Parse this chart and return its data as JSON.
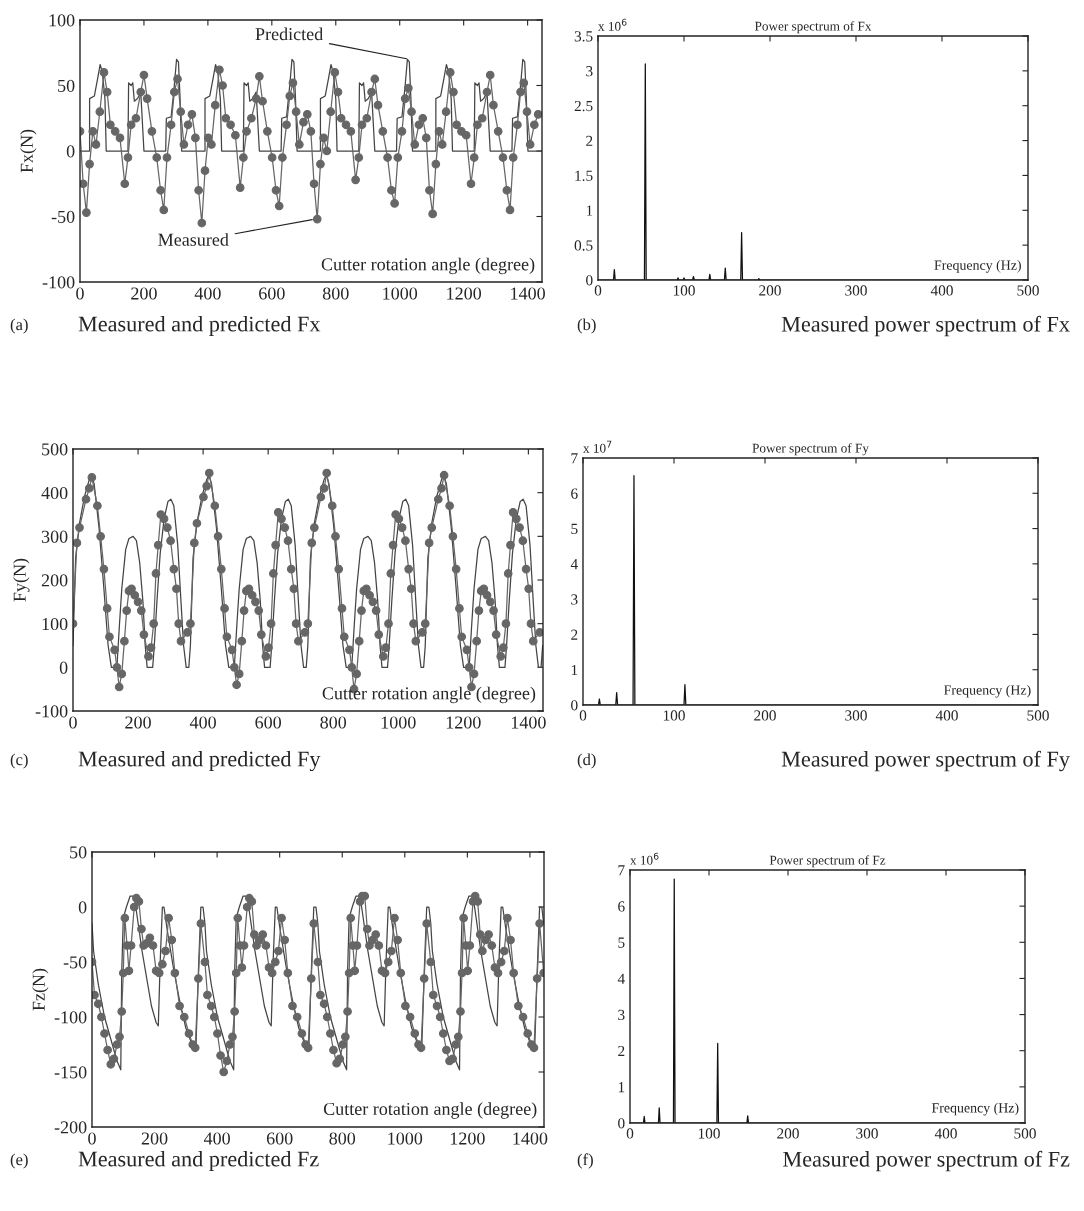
{
  "chart_data": [
    {
      "type": "line",
      "ylabel": "Fx(N)",
      "xlabel": "Cutter rotation angle (degree)",
      "xlim": [
        0,
        1445
      ],
      "xticks": [
        0,
        200,
        400,
        600,
        800,
        1000,
        1200,
        1400
      ],
      "ylim": [
        -100,
        100
      ],
      "yticks": [
        -100,
        -50,
        0,
        50,
        100
      ],
      "annotations": [
        {
          "text": "Predicted",
          "x": 1030,
          "y": 70
        },
        {
          "text": "Measured",
          "x": 735,
          "y": -52
        },
        "(a)",
        "Measured and predicted Fx"
      ],
      "series": [
        {
          "color": "#444444",
          "marker": "none",
          "x": [
            0,
            30,
            30,
            45,
            55,
            63,
            70,
            78,
            82,
            150,
            152,
            160,
            165,
            170,
            180,
            190,
            200,
            268,
            270,
            285,
            295,
            302,
            308,
            313,
            318,
            361,
            391,
            391,
            406,
            416,
            424,
            431,
            439,
            443,
            511,
            513,
            521,
            526,
            531,
            541,
            551,
            561,
            629,
            631,
            646,
            656,
            663,
            669,
            674,
            679,
            722,
            752,
            752,
            767,
            777,
            785,
            792,
            800,
            804,
            872,
            874,
            882,
            887,
            892,
            902,
            912,
            922,
            990,
            992,
            1007,
            1017,
            1024,
            1030,
            1035,
            1040,
            1083,
            1113,
            1113,
            1128,
            1138,
            1146,
            1153,
            1161,
            1165,
            1233,
            1235,
            1243,
            1248,
            1253,
            1263,
            1273,
            1283,
            1351,
            1353,
            1368,
            1378,
            1385,
            1391,
            1396,
            1401,
            1444
          ],
          "values": [
            0,
            0,
            40,
            42,
            55,
            66,
            60,
            40,
            0,
            0,
            52,
            50,
            52,
            38,
            40,
            45,
            0,
            0,
            25,
            26,
            50,
            70,
            68,
            40,
            0,
            0,
            0,
            40,
            42,
            55,
            66,
            60,
            40,
            0,
            0,
            52,
            50,
            52,
            38,
            40,
            45,
            0,
            0,
            25,
            26,
            50,
            70,
            68,
            40,
            0,
            0,
            0,
            40,
            42,
            55,
            66,
            60,
            40,
            0,
            0,
            52,
            50,
            52,
            38,
            40,
            45,
            0,
            0,
            25,
            26,
            50,
            70,
            68,
            40,
            0,
            0,
            0,
            40,
            42,
            55,
            66,
            60,
            40,
            0,
            0,
            52,
            50,
            52,
            38,
            40,
            45,
            0,
            0,
            25,
            26,
            50,
            70,
            68,
            40,
            0,
            0
          ]
        },
        {
          "color": "#666666",
          "marker": "circle",
          "x": [
            0,
            10,
            20,
            30,
            40,
            50,
            62,
            75,
            85,
            95,
            110,
            125,
            140,
            150,
            160,
            175,
            190,
            200,
            210,
            225,
            240,
            252,
            262,
            272,
            285,
            295,
            305,
            315,
            325,
            338,
            350,
            361,
            371,
            381,
            391,
            401,
            411,
            423,
            436,
            446,
            456,
            471,
            486,
            501,
            511,
            521,
            536,
            551,
            561,
            571,
            586,
            601,
            613,
            623,
            633,
            646,
            656,
            666,
            676,
            686,
            699,
            711,
            722,
            732,
            742,
            752,
            762,
            772,
            784,
            797,
            807,
            817,
            832,
            847,
            862,
            872,
            882,
            897,
            912,
            922,
            932,
            947,
            962,
            974,
            984,
            994,
            1007,
            1017,
            1027,
            1037,
            1047,
            1060,
            1072,
            1083,
            1093,
            1103,
            1113,
            1123,
            1133,
            1145,
            1158,
            1168,
            1178,
            1193,
            1208,
            1223,
            1233,
            1243,
            1258,
            1273,
            1283,
            1293,
            1308,
            1323,
            1335,
            1345,
            1355,
            1368,
            1378,
            1388,
            1398,
            1408,
            1421,
            1433
          ],
          "values": [
            15,
            -25,
            -47,
            -10,
            15,
            5,
            30,
            60,
            45,
            20,
            15,
            10,
            -25,
            -5,
            20,
            25,
            45,
            58,
            40,
            15,
            -5,
            -30,
            -45,
            -5,
            20,
            45,
            55,
            30,
            5,
            20,
            28,
            10,
            -30,
            -55,
            -15,
            10,
            5,
            35,
            62,
            50,
            25,
            20,
            12,
            -28,
            -5,
            15,
            25,
            40,
            57,
            38,
            15,
            -5,
            -30,
            -42,
            -5,
            20,
            42,
            52,
            30,
            5,
            22,
            28,
            15,
            -25,
            -52,
            -10,
            10,
            0,
            30,
            60,
            45,
            25,
            20,
            15,
            -22,
            -5,
            20,
            25,
            45,
            55,
            35,
            15,
            -5,
            -30,
            -40,
            -5,
            15,
            40,
            48,
            30,
            5,
            20,
            25,
            10,
            -30,
            -48,
            -10,
            15,
            5,
            30,
            60,
            45,
            20,
            15,
            12,
            -25,
            -5,
            20,
            25,
            45,
            58,
            35,
            15,
            -5,
            -30,
            -45,
            -5,
            20,
            45,
            52,
            30,
            5,
            20,
            28
          ]
        }
      ]
    },
    {
      "type": "line",
      "title": "Power spectrum of Fx",
      "xlabel": "Frequency (Hz)",
      "xlim": [
        0,
        500
      ],
      "xticks": [
        0,
        100,
        200,
        300,
        400,
        500
      ],
      "ylim": [
        0,
        3.5
      ],
      "yticks": [
        0,
        0.5,
        1,
        1.5,
        2,
        2.5,
        3,
        3.5
      ],
      "annotations": [
        "x 10$^{6}$",
        "(b)",
        "Measured power spectrum of Fx"
      ],
      "series": [
        {
          "color": "#111111",
          "marker": "none",
          "x": [
            0,
            18,
            19,
            20,
            54,
            55,
            56,
            92,
            93,
            94,
            99,
            100,
            101,
            110,
            111,
            112,
            129,
            130,
            131,
            147,
            148,
            149,
            166,
            167,
            168,
            186,
            187,
            188,
            500
          ],
          "values": [
            0,
            0,
            0.15,
            0,
            0,
            3.1,
            0,
            0,
            0.03,
            0,
            0,
            0.03,
            0,
            0,
            0.05,
            0,
            0,
            0.08,
            0,
            0,
            0.17,
            0,
            0,
            0.68,
            0,
            0,
            0.02,
            0,
            0
          ]
        }
      ]
    },
    {
      "type": "line",
      "ylabel": "Fy(N)",
      "xlabel": "Cutter rotation angle (degree)",
      "xlim": [
        0,
        1445
      ],
      "xticks": [
        0,
        200,
        400,
        600,
        800,
        1000,
        1200,
        1400
      ],
      "ylim": [
        -100,
        500
      ],
      "yticks": [
        -100,
        0,
        100,
        200,
        300,
        400,
        500
      ],
      "annotations": [
        "(c)",
        "Measured and predicted Fy"
      ],
      "series": [
        {
          "color": "#444444",
          "marker": "none",
          "x": [
            0,
            8,
            20,
            35,
            50,
            57,
            65,
            80,
            95,
            108,
            118,
            135,
            143,
            150,
            162,
            172,
            185,
            195,
            205,
            215,
            222,
            228,
            245,
            250,
            258,
            268,
            280,
            292,
            301,
            310,
            322,
            332,
            340,
            348,
            356,
            361,
            369,
            381,
            396,
            411,
            418,
            426,
            441,
            456,
            469,
            479,
            496,
            504,
            511,
            523,
            533,
            546,
            556,
            566,
            576,
            583,
            589,
            606,
            611,
            619,
            629,
            641,
            653,
            662,
            671,
            683,
            693,
            701,
            709,
            717,
            722,
            730,
            742,
            757,
            772,
            779,
            787,
            802,
            817,
            830,
            840,
            857,
            865,
            872,
            884,
            894,
            907,
            917,
            927,
            937,
            944,
            950,
            967,
            972,
            980,
            990,
            1002,
            1014,
            1023,
            1032,
            1044,
            1054,
            1062,
            1070,
            1078,
            1083,
            1091,
            1103,
            1118,
            1133,
            1140,
            1148,
            1163,
            1178,
            1191,
            1201,
            1218,
            1226,
            1233,
            1245,
            1255,
            1268,
            1278,
            1288,
            1298,
            1305,
            1311,
            1328,
            1333,
            1341,
            1351,
            1363,
            1375,
            1384,
            1393,
            1405,
            1415,
            1423,
            1431,
            1439,
            1444
          ],
          "values": [
            50,
            250,
            330,
            390,
            430,
            440,
            420,
            320,
            180,
            50,
            0,
            0,
            100,
            180,
            270,
            295,
            300,
            290,
            240,
            150,
            50,
            0,
            0,
            50,
            150,
            260,
            340,
            380,
            385,
            370,
            280,
            150,
            50,
            0,
            0,
            50,
            250,
            330,
            390,
            430,
            440,
            420,
            320,
            180,
            50,
            0,
            0,
            100,
            180,
            270,
            295,
            300,
            290,
            240,
            150,
            50,
            0,
            0,
            50,
            150,
            260,
            340,
            380,
            385,
            370,
            280,
            150,
            50,
            0,
            0,
            50,
            250,
            330,
            390,
            430,
            440,
            420,
            320,
            180,
            50,
            0,
            0,
            100,
            180,
            270,
            295,
            300,
            290,
            240,
            150,
            50,
            0,
            0,
            50,
            150,
            260,
            340,
            380,
            385,
            370,
            280,
            150,
            50,
            0,
            0,
            50,
            250,
            330,
            390,
            430,
            440,
            420,
            320,
            180,
            50,
            0,
            0,
            100,
            180,
            270,
            295,
            300,
            290,
            240,
            150,
            50,
            0,
            0,
            50,
            150,
            260,
            340,
            380,
            385,
            370,
            280,
            150,
            50,
            0,
            0,
            50
          ]
        },
        {
          "color": "#666666",
          "marker": "circle",
          "x": [
            0,
            12,
            20,
            40,
            50,
            58,
            75,
            85,
            95,
            105,
            112,
            128,
            135,
            142,
            150,
            158,
            165,
            172,
            180,
            190,
            200,
            210,
            218,
            232,
            240,
            248,
            255,
            262,
            270,
            280,
            290,
            300,
            310,
            318,
            325,
            332,
            352,
            361,
            373,
            381,
            401,
            411,
            419,
            436,
            446,
            456,
            466,
            473,
            489,
            496,
            503,
            511,
            519,
            526,
            533,
            541,
            551,
            561,
            571,
            579,
            593,
            601,
            609,
            616,
            623,
            631,
            641,
            651,
            661,
            671,
            679,
            686,
            693,
            713,
            722,
            734,
            742,
            762,
            772,
            780,
            797,
            807,
            817,
            827,
            834,
            850,
            857,
            864,
            872,
            880,
            887,
            894,
            902,
            912,
            922,
            932,
            940,
            954,
            962,
            970,
            977,
            984,
            992,
            1002,
            1012,
            1022,
            1032,
            1040,
            1047,
            1054,
            1074,
            1083,
            1095,
            1103,
            1123,
            1133,
            1141,
            1158,
            1168,
            1178,
            1188,
            1195,
            1211,
            1218,
            1225,
            1233,
            1241,
            1248,
            1255,
            1263,
            1273,
            1283,
            1293,
            1301,
            1315,
            1323,
            1331,
            1338,
            1345,
            1353,
            1363,
            1373,
            1383,
            1393,
            1401,
            1408,
            1415,
            1435
          ],
          "values": [
            100,
            285,
            320,
            385,
            410,
            435,
            370,
            300,
            225,
            135,
            70,
            40,
            0,
            -45,
            -15,
            60,
            130,
            175,
            180,
            165,
            150,
            130,
            75,
            25,
            45,
            100,
            215,
            280,
            350,
            340,
            320,
            290,
            225,
            180,
            100,
            60,
            80,
            100,
            285,
            330,
            390,
            415,
            445,
            370,
            300,
            225,
            135,
            70,
            40,
            0,
            -40,
            -15,
            60,
            130,
            175,
            180,
            165,
            150,
            130,
            75,
            25,
            45,
            100,
            215,
            280,
            355,
            340,
            320,
            290,
            225,
            180,
            100,
            60,
            80,
            100,
            285,
            320,
            390,
            410,
            445,
            370,
            300,
            225,
            135,
            70,
            40,
            0,
            -50,
            -15,
            60,
            130,
            175,
            180,
            165,
            150,
            130,
            75,
            25,
            45,
            100,
            215,
            280,
            350,
            340,
            320,
            290,
            225,
            180,
            100,
            60,
            80,
            100,
            285,
            320,
            385,
            410,
            440,
            370,
            300,
            225,
            135,
            70,
            40,
            0,
            -45,
            -15,
            60,
            130,
            175,
            180,
            165,
            150,
            130,
            75,
            25,
            45,
            100,
            215,
            280,
            355,
            340,
            320,
            290,
            225,
            180,
            100,
            60,
            80
          ]
        }
      ]
    },
    {
      "type": "line",
      "title": "Power spectrum of Fy",
      "xlabel": "Frequency (Hz)",
      "xlim": [
        0,
        500
      ],
      "xticks": [
        0,
        100,
        200,
        300,
        400,
        500
      ],
      "ylim": [
        0,
        7
      ],
      "yticks": [
        0,
        1,
        2,
        3,
        4,
        5,
        6,
        7
      ],
      "annotations": [
        "x 10$^{7}$",
        "(d)",
        "Measured power spectrum of Fy"
      ],
      "series": [
        {
          "color": "#111111",
          "marker": "none",
          "x": [
            0,
            17,
            18,
            19,
            36,
            37,
            38,
            55,
            56,
            57,
            111,
            112,
            113,
            500
          ],
          "values": [
            0,
            0,
            0.17,
            0,
            0,
            0.35,
            0,
            0,
            6.5,
            0,
            0,
            0.58,
            0,
            0
          ]
        }
      ]
    },
    {
      "type": "line",
      "ylabel": "Fz(N)",
      "xlabel": "Cutter rotation angle (degree)",
      "xlim": [
        0,
        1445
      ],
      "xticks": [
        0,
        200,
        400,
        600,
        800,
        1000,
        1200,
        1400
      ],
      "ylim": [
        -200,
        50
      ],
      "yticks": [
        -200,
        -150,
        -100,
        -50,
        0,
        50
      ],
      "annotations": [
        "(e)",
        "Measured and predicted Fz"
      ],
      "series": [
        {
          "color": "#444444",
          "marker": "none",
          "x": [
            0,
            5,
            20,
            40,
            60,
            80,
            92,
            95,
            100,
            110,
            122,
            135,
            145,
            160,
            175,
            190,
            205,
            212,
            218,
            225,
            230,
            240,
            260,
            280,
            300,
            320,
            332,
            340,
            348,
            355,
            361,
            366,
            381,
            401,
            421,
            441,
            453,
            456,
            461,
            471,
            483,
            496,
            506,
            521,
            536,
            551,
            566,
            573,
            579,
            586,
            591,
            601,
            621,
            641,
            661,
            681,
            693,
            701,
            709,
            716,
            722,
            727,
            742,
            762,
            782,
            802,
            814,
            817,
            822,
            832,
            844,
            857,
            867,
            882,
            897,
            912,
            927,
            934,
            940,
            947,
            952,
            962,
            982,
            1002,
            1022,
            1042,
            1054,
            1062,
            1070,
            1077,
            1083,
            1088,
            1103,
            1123,
            1143,
            1163,
            1175,
            1178,
            1183,
            1193,
            1205,
            1218,
            1228,
            1243,
            1258,
            1273,
            1288,
            1295,
            1301,
            1308,
            1313,
            1323,
            1343,
            1363,
            1383,
            1403,
            1415,
            1423,
            1431,
            1438,
            1444
          ],
          "values": [
            -15,
            -40,
            -70,
            -100,
            -120,
            -140,
            -148,
            -60,
            -10,
            0,
            10,
            10,
            -10,
            -40,
            -65,
            -90,
            -105,
            -108,
            -50,
            0,
            0,
            -20,
            -55,
            -85,
            -110,
            -125,
            -130,
            -60,
            0,
            0,
            -15,
            -40,
            -70,
            -100,
            -120,
            -140,
            -148,
            -60,
            -10,
            0,
            10,
            10,
            -10,
            -40,
            -65,
            -90,
            -105,
            -108,
            -50,
            0,
            0,
            -20,
            -55,
            -85,
            -110,
            -125,
            -130,
            -60,
            0,
            0,
            -15,
            -40,
            -70,
            -100,
            -120,
            -140,
            -148,
            -60,
            -10,
            0,
            10,
            10,
            -10,
            -40,
            -65,
            -90,
            -105,
            -108,
            -50,
            0,
            0,
            -20,
            -55,
            -85,
            -110,
            -125,
            -130,
            -60,
            0,
            0,
            -15,
            -40,
            -70,
            -100,
            -120,
            -140,
            -148,
            -60,
            -10,
            0,
            10,
            10,
            -10,
            -40,
            -65,
            -90,
            -105,
            -108,
            -50,
            0,
            0,
            -20,
            -55,
            -85,
            -110,
            -125,
            -130,
            -60,
            0,
            0,
            -15
          ]
        },
        {
          "color": "#666666",
          "marker": "circle",
          "x": [
            0,
            8,
            20,
            30,
            40,
            50,
            60,
            70,
            80,
            88,
            95,
            100,
            105,
            112,
            118,
            125,
            135,
            142,
            150,
            158,
            165,
            175,
            185,
            195,
            205,
            215,
            225,
            235,
            245,
            255,
            265,
            280,
            295,
            310,
            322,
            330,
            340,
            348,
            361,
            369,
            381,
            391,
            401,
            411,
            421,
            431,
            441,
            449,
            456,
            461,
            466,
            473,
            479,
            486,
            496,
            503,
            511,
            519,
            526,
            536,
            546,
            556,
            566,
            576,
            586,
            596,
            606,
            616,
            626,
            641,
            656,
            671,
            683,
            691,
            701,
            709,
            722,
            730,
            742,
            752,
            762,
            772,
            782,
            792,
            802,
            810,
            817,
            822,
            827,
            834,
            840,
            847,
            857,
            864,
            872,
            880,
            887,
            897,
            907,
            917,
            927,
            937,
            947,
            957,
            967,
            977,
            987,
            1002,
            1017,
            1032,
            1044,
            1052,
            1062,
            1070,
            1083,
            1091,
            1103,
            1113,
            1123,
            1133,
            1143,
            1153,
            1163,
            1171,
            1178,
            1183,
            1188,
            1195,
            1201,
            1208,
            1218,
            1225,
            1233,
            1241,
            1248,
            1258,
            1268,
            1278,
            1288,
            1298,
            1308,
            1318,
            1328,
            1338,
            1348,
            1363,
            1378,
            1393,
            1405,
            1413,
            1423,
            1431,
            1444
          ],
          "values": [
            -50,
            -80,
            -88,
            -100,
            -115,
            -130,
            -143,
            -138,
            -125,
            -118,
            -95,
            -60,
            -10,
            -35,
            -58,
            -35,
            0,
            8,
            5,
            -20,
            -35,
            -33,
            -28,
            -35,
            -58,
            -60,
            -52,
            -40,
            -10,
            -30,
            -60,
            -90,
            -100,
            -115,
            -125,
            -128,
            -65,
            -15,
            -50,
            -80,
            -90,
            -100,
            -115,
            -135,
            -150,
            -140,
            -125,
            -118,
            -95,
            -60,
            -10,
            -35,
            -55,
            -35,
            0,
            8,
            5,
            -25,
            -35,
            -30,
            -25,
            -35,
            -55,
            -60,
            -50,
            -40,
            -10,
            -30,
            -60,
            -90,
            -100,
            -115,
            -125,
            -128,
            -65,
            -15,
            -50,
            -80,
            -88,
            -100,
            -115,
            -130,
            -142,
            -138,
            -125,
            -118,
            -95,
            -60,
            -10,
            -35,
            -58,
            -35,
            5,
            10,
            10,
            -20,
            -35,
            -30,
            -25,
            -35,
            -58,
            -60,
            -50,
            -40,
            -10,
            -30,
            -60,
            -90,
            -100,
            -115,
            -125,
            -128,
            -65,
            -15,
            -50,
            -80,
            -90,
            -100,
            -115,
            -130,
            -140,
            -138,
            -125,
            -118,
            -95,
            -60,
            -10,
            -35,
            -58,
            -35,
            5,
            10,
            5,
            -25,
            -40,
            -30,
            -25,
            -35,
            -55,
            -60,
            -50,
            -40,
            -10,
            -30,
            -60,
            -90,
            -100,
            -115,
            -125,
            -128,
            -65,
            -15,
            -60
          ]
        }
      ]
    },
    {
      "type": "line",
      "title": "Power spectrum of Fz",
      "xlabel": "Frequency (Hz)",
      "xlim": [
        0,
        500
      ],
      "xticks": [
        0,
        100,
        200,
        300,
        400,
        500
      ],
      "ylim": [
        0,
        7
      ],
      "yticks": [
        0,
        1,
        2,
        3,
        4,
        5,
        6,
        7
      ],
      "annotations": [
        "x 10$^{6}$",
        "(f)",
        "Measured power spectrum of Fz"
      ],
      "series": [
        {
          "color": "#111111",
          "marker": "none",
          "x": [
            0,
            17,
            18,
            19,
            36,
            37,
            38,
            55,
            56,
            57,
            110,
            111,
            112,
            148,
            149,
            150,
            500
          ],
          "values": [
            0,
            0,
            0.18,
            0,
            0,
            0.42,
            0,
            0,
            6.75,
            0,
            0,
            2.2,
            0,
            0,
            0.2,
            0,
            0
          ]
        }
      ]
    }
  ]
}
